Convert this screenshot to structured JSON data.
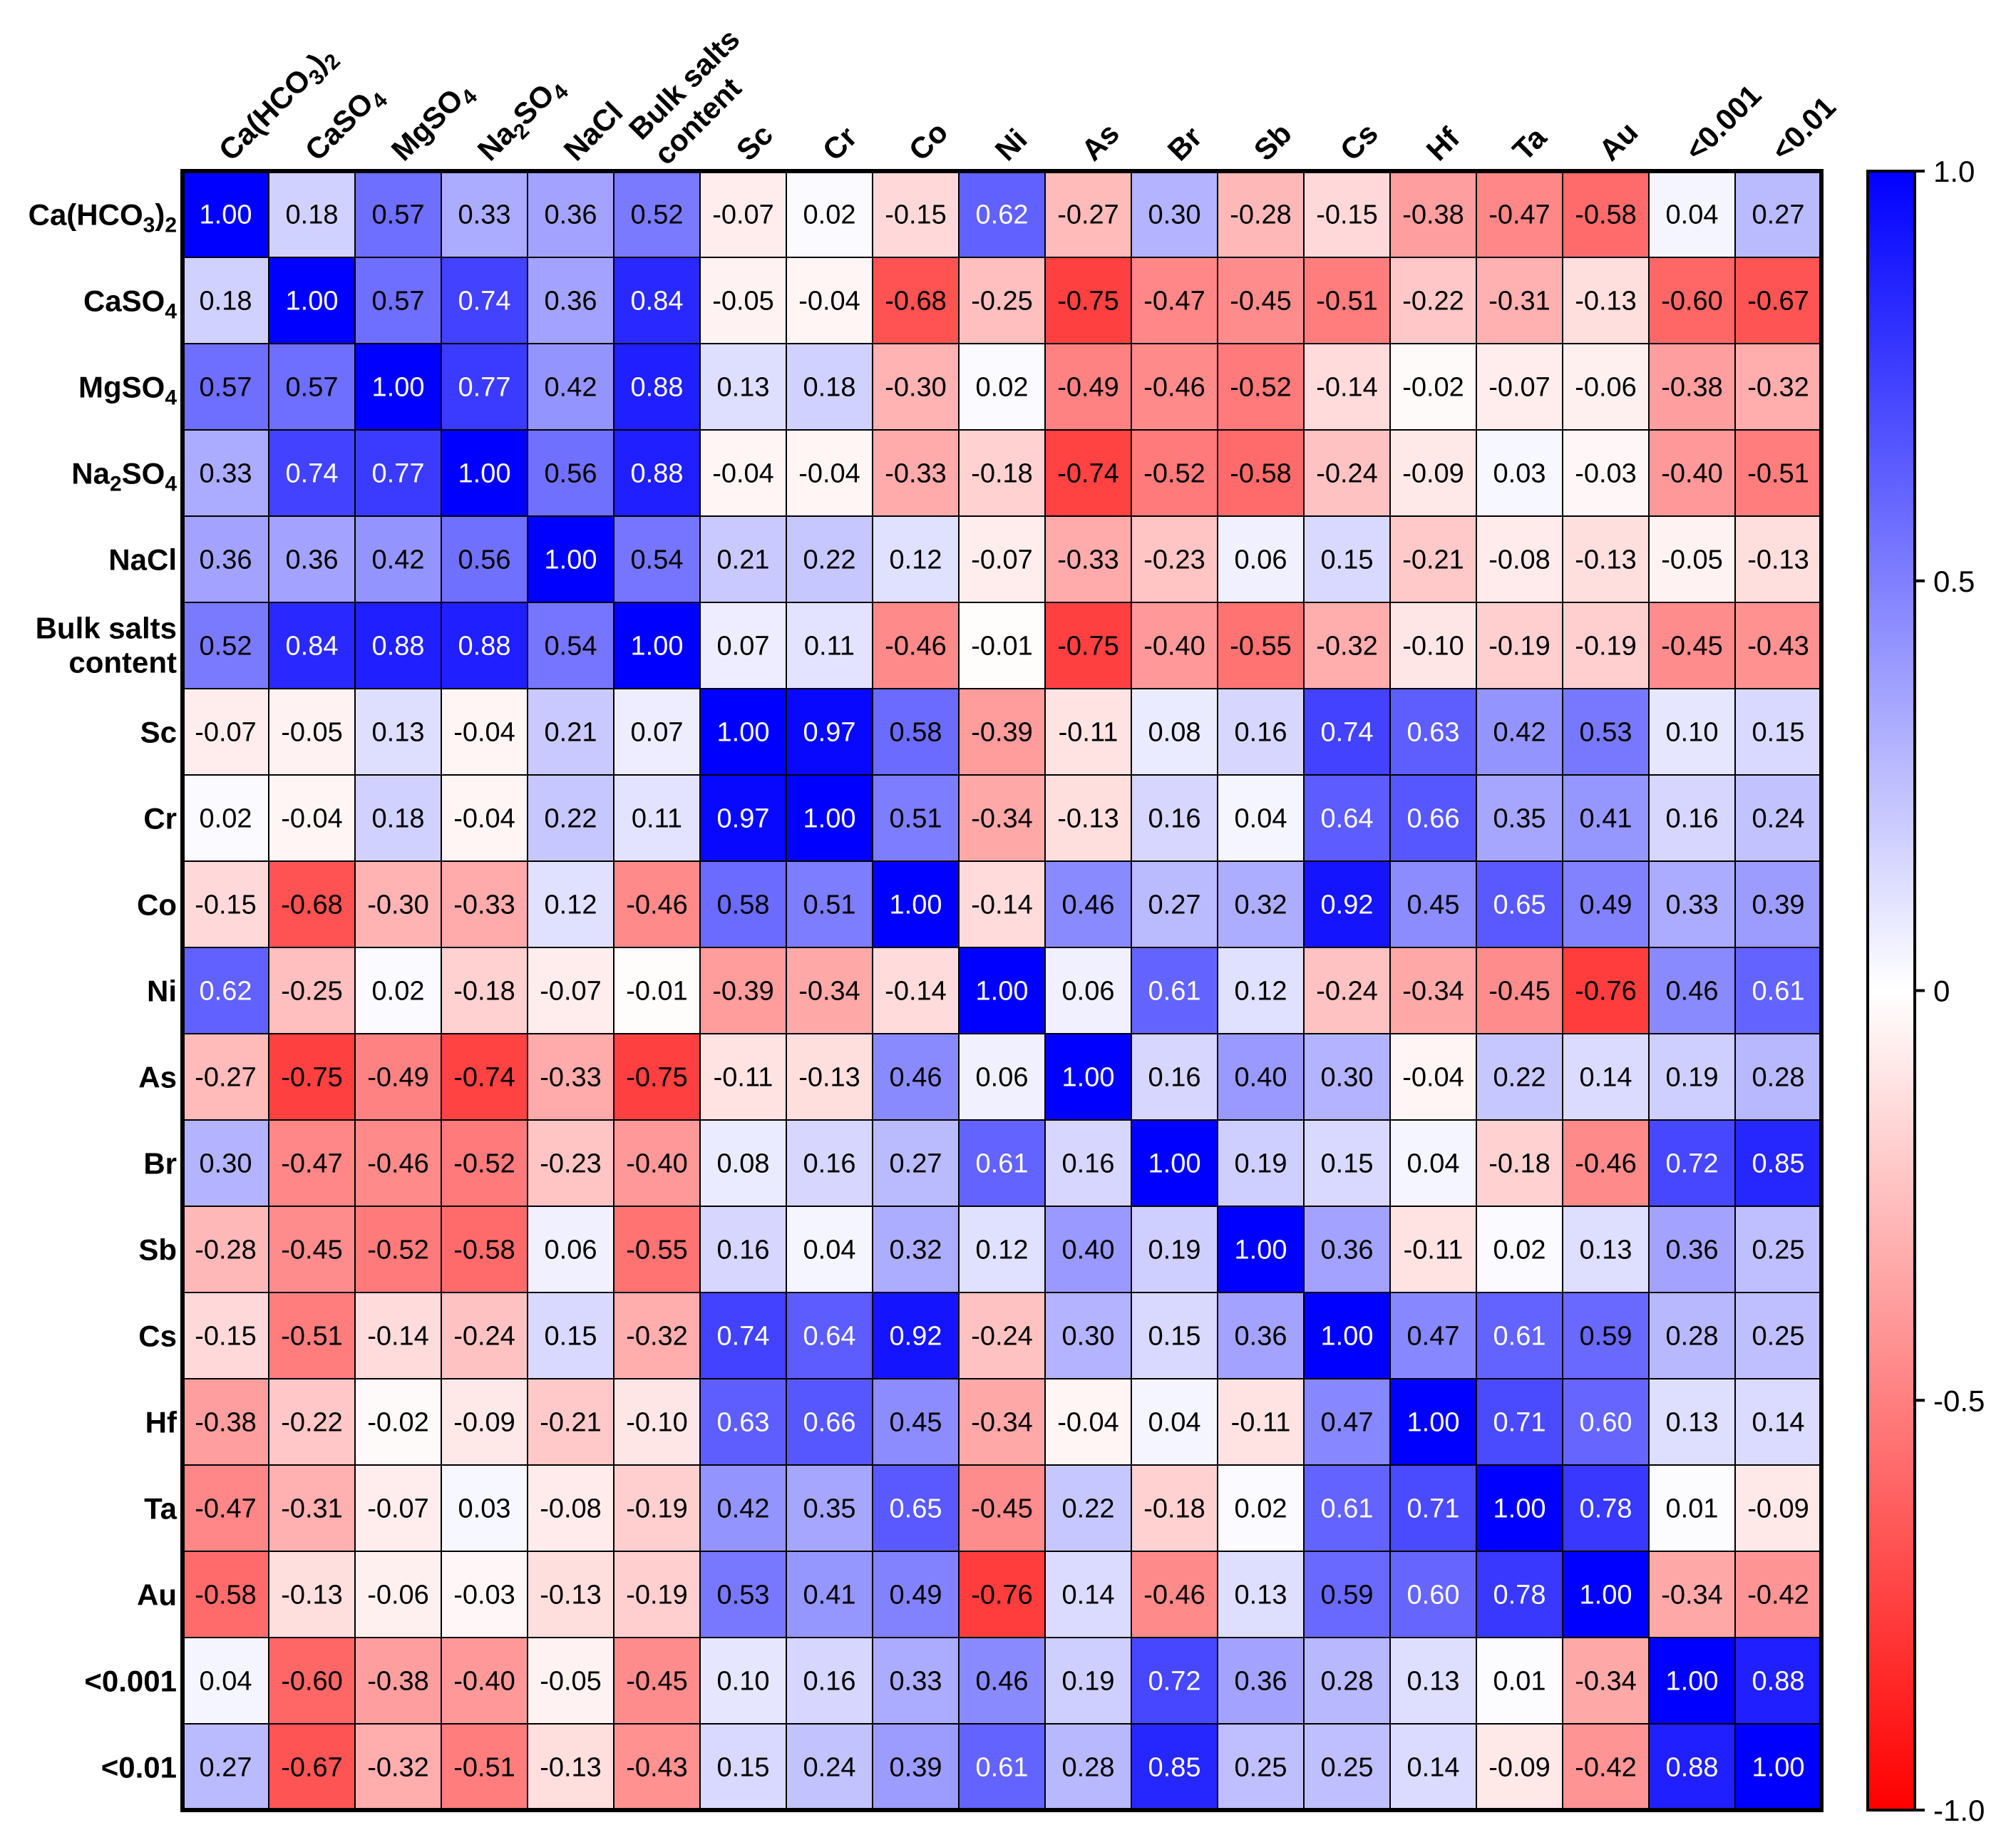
{
  "chart_data": {
    "type": "heatmap",
    "labels": [
      {
        "base": "Ca(HCO",
        "sub": "3",
        "tail": ")",
        "sub2": "2",
        "tail2": "",
        "lines": []
      },
      {
        "base": "CaSO",
        "sub": "4",
        "tail": "",
        "sub2": "",
        "tail2": "",
        "lines": []
      },
      {
        "base": "MgSO",
        "sub": "4",
        "tail": "",
        "sub2": "",
        "tail2": "",
        "lines": []
      },
      {
        "base": "Na",
        "sub": "2",
        "tail": "SO",
        "sub2": "4",
        "tail2": "",
        "lines": []
      },
      {
        "base": "NaCl",
        "sub": "",
        "tail": "",
        "sub2": "",
        "tail2": "",
        "lines": []
      },
      {
        "base": "",
        "sub": "",
        "tail": "",
        "sub2": "",
        "tail2": "",
        "lines": [
          "Bulk salts",
          "content"
        ]
      },
      {
        "base": "Sc",
        "sub": "",
        "tail": "",
        "sub2": "",
        "tail2": "",
        "lines": []
      },
      {
        "base": "Cr",
        "sub": "",
        "tail": "",
        "sub2": "",
        "tail2": "",
        "lines": []
      },
      {
        "base": "Co",
        "sub": "",
        "tail": "",
        "sub2": "",
        "tail2": "",
        "lines": []
      },
      {
        "base": "Ni",
        "sub": "",
        "tail": "",
        "sub2": "",
        "tail2": "",
        "lines": []
      },
      {
        "base": "As",
        "sub": "",
        "tail": "",
        "sub2": "",
        "tail2": "",
        "lines": []
      },
      {
        "base": "Br",
        "sub": "",
        "tail": "",
        "sub2": "",
        "tail2": "",
        "lines": []
      },
      {
        "base": "Sb",
        "sub": "",
        "tail": "",
        "sub2": "",
        "tail2": "",
        "lines": []
      },
      {
        "base": "Cs",
        "sub": "",
        "tail": "",
        "sub2": "",
        "tail2": "",
        "lines": []
      },
      {
        "base": "Hf",
        "sub": "",
        "tail": "",
        "sub2": "",
        "tail2": "",
        "lines": []
      },
      {
        "base": "Ta",
        "sub": "",
        "tail": "",
        "sub2": "",
        "tail2": "",
        "lines": []
      },
      {
        "base": "Au",
        "sub": "",
        "tail": "",
        "sub2": "",
        "tail2": "",
        "lines": []
      },
      {
        "base": "<0.001",
        "sub": "",
        "tail": "",
        "sub2": "",
        "tail2": "",
        "lines": []
      },
      {
        "base": "<0.01",
        "sub": "",
        "tail": "",
        "sub2": "",
        "tail2": "",
        "lines": []
      }
    ],
    "matrix": [
      [
        "1.00",
        "0.18",
        "0.57",
        "0.33",
        "0.36",
        "0.52",
        "-0.07",
        "0.02",
        "-0.15",
        "0.62",
        "-0.27",
        "0.30",
        "-0.28",
        "-0.15",
        "-0.38",
        "-0.47",
        "-0.58",
        "0.04",
        "0.27"
      ],
      [
        "0.18",
        "1.00",
        "0.57",
        "0.74",
        "0.36",
        "0.84",
        "-0.05",
        "-0.04",
        "-0.68",
        "-0.25",
        "-0.75",
        "-0.47",
        "-0.45",
        "-0.51",
        "-0.22",
        "-0.31",
        "-0.13",
        "-0.60",
        "-0.67"
      ],
      [
        "0.57",
        "0.57",
        "1.00",
        "0.77",
        "0.42",
        "0.88",
        "0.13",
        "0.18",
        "-0.30",
        "0.02",
        "-0.49",
        "-0.46",
        "-0.52",
        "-0.14",
        "-0.02",
        "-0.07",
        "-0.06",
        "-0.38",
        "-0.32"
      ],
      [
        "0.33",
        "0.74",
        "0.77",
        "1.00",
        "0.56",
        "0.88",
        "-0.04",
        "-0.04",
        "-0.33",
        "-0.18",
        "-0.74",
        "-0.52",
        "-0.58",
        "-0.24",
        "-0.09",
        "0.03",
        "-0.03",
        "-0.40",
        "-0.51"
      ],
      [
        "0.36",
        "0.36",
        "0.42",
        "0.56",
        "1.00",
        "0.54",
        "0.21",
        "0.22",
        "0.12",
        "-0.07",
        "-0.33",
        "-0.23",
        "0.06",
        "0.15",
        "-0.21",
        "-0.08",
        "-0.13",
        "-0.05",
        "-0.13"
      ],
      [
        "0.52",
        "0.84",
        "0.88",
        "0.88",
        "0.54",
        "1.00",
        "0.07",
        "0.11",
        "-0.46",
        "-0.01",
        "-0.75",
        "-0.40",
        "-0.55",
        "-0.32",
        "-0.10",
        "-0.19",
        "-0.19",
        "-0.45",
        "-0.43"
      ],
      [
        "-0.07",
        "-0.05",
        "0.13",
        "-0.04",
        "0.21",
        "0.07",
        "1.00",
        "0.97",
        "0.58",
        "-0.39",
        "-0.11",
        "0.08",
        "0.16",
        "0.74",
        "0.63",
        "0.42",
        "0.53",
        "0.10",
        "0.15"
      ],
      [
        "0.02",
        "-0.04",
        "0.18",
        "-0.04",
        "0.22",
        "0.11",
        "0.97",
        "1.00",
        "0.51",
        "-0.34",
        "-0.13",
        "0.16",
        "0.04",
        "0.64",
        "0.66",
        "0.35",
        "0.41",
        "0.16",
        "0.24"
      ],
      [
        "-0.15",
        "-0.68",
        "-0.30",
        "-0.33",
        "0.12",
        "-0.46",
        "0.58",
        "0.51",
        "1.00",
        "-0.14",
        "0.46",
        "0.27",
        "0.32",
        "0.92",
        "0.45",
        "0.65",
        "0.49",
        "0.33",
        "0.39"
      ],
      [
        "0.62",
        "-0.25",
        "0.02",
        "-0.18",
        "-0.07",
        "-0.01",
        "-0.39",
        "-0.34",
        "-0.14",
        "1.00",
        "0.06",
        "0.61",
        "0.12",
        "-0.24",
        "-0.34",
        "-0.45",
        "-0.76",
        "0.46",
        "0.61"
      ],
      [
        "-0.27",
        "-0.75",
        "-0.49",
        "-0.74",
        "-0.33",
        "-0.75",
        "-0.11",
        "-0.13",
        "0.46",
        "0.06",
        "1.00",
        "0.16",
        "0.40",
        "0.30",
        "-0.04",
        "0.22",
        "0.14",
        "0.19",
        "0.28"
      ],
      [
        "0.30",
        "-0.47",
        "-0.46",
        "-0.52",
        "-0.23",
        "-0.40",
        "0.08",
        "0.16",
        "0.27",
        "0.61",
        "0.16",
        "1.00",
        "0.19",
        "0.15",
        "0.04",
        "-0.18",
        "-0.46",
        "0.72",
        "0.85"
      ],
      [
        "-0.28",
        "-0.45",
        "-0.52",
        "-0.58",
        "0.06",
        "-0.55",
        "0.16",
        "0.04",
        "0.32",
        "0.12",
        "0.40",
        "0.19",
        "1.00",
        "0.36",
        "-0.11",
        "0.02",
        "0.13",
        "0.36",
        "0.25"
      ],
      [
        "-0.15",
        "-0.51",
        "-0.14",
        "-0.24",
        "0.15",
        "-0.32",
        "0.74",
        "0.64",
        "0.92",
        "-0.24",
        "0.30",
        "0.15",
        "0.36",
        "1.00",
        "0.47",
        "0.61",
        "0.59",
        "0.28",
        "0.25"
      ],
      [
        "-0.38",
        "-0.22",
        "-0.02",
        "-0.09",
        "-0.21",
        "-0.10",
        "0.63",
        "0.66",
        "0.45",
        "-0.34",
        "-0.04",
        "0.04",
        "-0.11",
        "0.47",
        "1.00",
        "0.71",
        "0.60",
        "0.13",
        "0.14"
      ],
      [
        "-0.47",
        "-0.31",
        "-0.07",
        "0.03",
        "-0.08",
        "-0.19",
        "0.42",
        "0.35",
        "0.65",
        "-0.45",
        "0.22",
        "-0.18",
        "0.02",
        "0.61",
        "0.71",
        "1.00",
        "0.78",
        "0.01",
        "-0.09"
      ],
      [
        "-0.58",
        "-0.13",
        "-0.06",
        "-0.03",
        "-0.13",
        "-0.19",
        "0.53",
        "0.41",
        "0.49",
        "-0.76",
        "0.14",
        "-0.46",
        "0.13",
        "0.59",
        "0.60",
        "0.78",
        "1.00",
        "-0.34",
        "-0.42"
      ],
      [
        "0.04",
        "-0.60",
        "-0.38",
        "-0.40",
        "-0.05",
        "-0.45",
        "0.10",
        "0.16",
        "0.33",
        "0.46",
        "0.19",
        "0.72",
        "0.36",
        "0.28",
        "0.13",
        "0.01",
        "-0.34",
        "1.00",
        "0.88"
      ],
      [
        "0.27",
        "-0.67",
        "-0.32",
        "-0.51",
        "-0.13",
        "-0.43",
        "0.15",
        "0.24",
        "0.39",
        "0.61",
        "0.28",
        "0.85",
        "0.25",
        "0.25",
        "0.14",
        "-0.09",
        "-0.42",
        "0.88",
        "1.00"
      ]
    ],
    "colorbar": {
      "range": [
        -1.0,
        1.0
      ],
      "ticks": [
        {
          "value": 1.0,
          "label": "1.0"
        },
        {
          "value": 0.5,
          "label": "0.5"
        },
        {
          "value": 0.0,
          "label": "0"
        },
        {
          "value": -0.5,
          "label": "-0.5"
        },
        {
          "value": -1.0,
          "label": "-1.0"
        }
      ],
      "colors": {
        "negative": "#ff0000",
        "zero": "#ffffff",
        "positive": "#0000ff"
      }
    }
  }
}
